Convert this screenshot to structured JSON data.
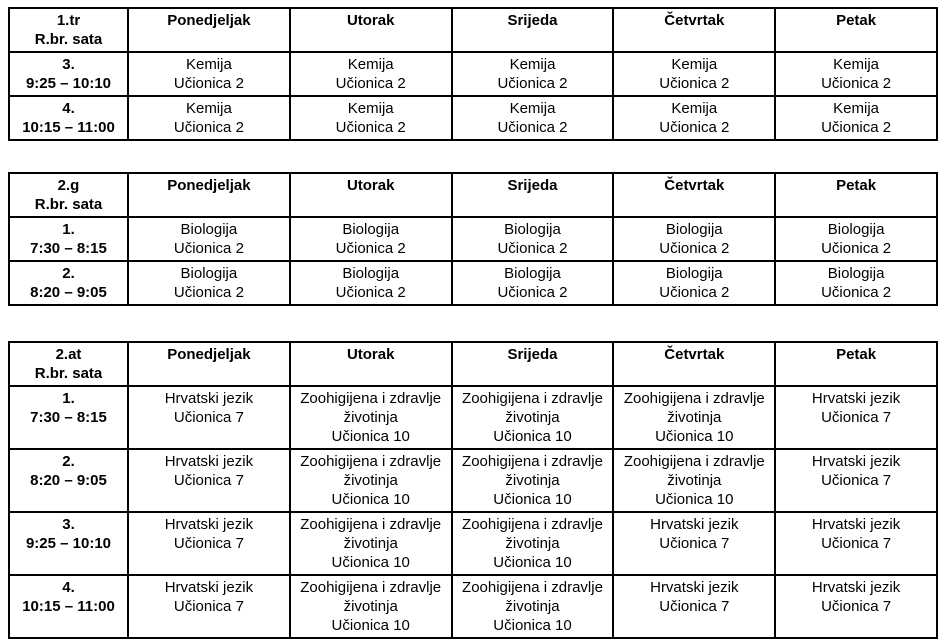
{
  "page": {
    "background_color": "#ffffff",
    "text_color": "#000000",
    "border_color": "#000000"
  },
  "tables": [
    {
      "name": "timetable-1tr",
      "header": {
        "class_label": "1.tr",
        "row_label": "R.br. sata",
        "days": [
          "Ponedjeljak",
          "Utorak",
          "Srijeda",
          "Četvrtak",
          "Petak"
        ]
      },
      "rows": [
        {
          "period": "3.",
          "time": "9:25 – 10:10",
          "cells": [
            {
              "subject": "Kemija",
              "room": "Učionica 2"
            },
            {
              "subject": "Kemija",
              "room": "Učionica 2"
            },
            {
              "subject": "Kemija",
              "room": "Učionica 2"
            },
            {
              "subject": "Kemija",
              "room": "Učionica 2"
            },
            {
              "subject": "Kemija",
              "room": "Učionica 2"
            }
          ]
        },
        {
          "period": "4.",
          "time": "10:15 – 11:00",
          "cells": [
            {
              "subject": "Kemija",
              "room": "Učionica 2"
            },
            {
              "subject": "Kemija",
              "room": "Učionica 2"
            },
            {
              "subject": "Kemija",
              "room": "Učionica 2"
            },
            {
              "subject": "Kemija",
              "room": "Učionica 2"
            },
            {
              "subject": "Kemija",
              "room": "Učionica 2"
            }
          ]
        }
      ]
    },
    {
      "name": "timetable-2g",
      "header": {
        "class_label": "2.g",
        "row_label": "R.br. sata",
        "days": [
          "Ponedjeljak",
          "Utorak",
          "Srijeda",
          "Četvrtak",
          "Petak"
        ]
      },
      "rows": [
        {
          "period": "1.",
          "time": "7:30 – 8:15",
          "cells": [
            {
              "subject": "Biologija",
              "room": "Učionica 2"
            },
            {
              "subject": "Biologija",
              "room": "Učionica 2"
            },
            {
              "subject": "Biologija",
              "room": "Učionica 2"
            },
            {
              "subject": "Biologija",
              "room": "Učionica 2"
            },
            {
              "subject": "Biologija",
              "room": "Učionica 2"
            }
          ]
        },
        {
          "period": "2.",
          "time": "8:20 – 9:05",
          "cells": [
            {
              "subject": "Biologija",
              "room": "Učionica 2"
            },
            {
              "subject": "Biologija",
              "room": "Učionica 2"
            },
            {
              "subject": "Biologija",
              "room": "Učionica 2"
            },
            {
              "subject": "Biologija",
              "room": "Učionica 2"
            },
            {
              "subject": "Biologija",
              "room": "Učionica 2"
            }
          ]
        }
      ]
    },
    {
      "name": "timetable-2at",
      "header": {
        "class_label": "2.at",
        "row_label": "R.br. sata",
        "days": [
          "Ponedjeljak",
          "Utorak",
          "Srijeda",
          "Četvrtak",
          "Petak"
        ]
      },
      "rows": [
        {
          "period": "1.",
          "time": "7:30 – 8:15",
          "cells": [
            {
              "subject": "Hrvatski jezik",
              "room": "Učionica 7"
            },
            {
              "subject": "Zoohigijena i zdravlje životinja",
              "room": "Učionica 10"
            },
            {
              "subject": "Zoohigijena i zdravlje životinja",
              "room": "Učionica 10"
            },
            {
              "subject": "Zoohigijena i zdravlje životinja",
              "room": "Učionica 10"
            },
            {
              "subject": "Hrvatski jezik",
              "room": "Učionica 7"
            }
          ]
        },
        {
          "period": "2.",
          "time": "8:20 – 9:05",
          "cells": [
            {
              "subject": "Hrvatski jezik",
              "room": "Učionica 7"
            },
            {
              "subject": "Zoohigijena i zdravlje životinja",
              "room": "Učionica 10"
            },
            {
              "subject": "Zoohigijena i zdravlje životinja",
              "room": "Učionica 10"
            },
            {
              "subject": "Zoohigijena i zdravlje životinja",
              "room": "Učionica 10"
            },
            {
              "subject": "Hrvatski jezik",
              "room": "Učionica 7"
            }
          ]
        },
        {
          "period": "3.",
          "time": "9:25 – 10:10",
          "cells": [
            {
              "subject": "Hrvatski jezik",
              "room": "Učionica 7"
            },
            {
              "subject": "Zoohigijena i zdravlje životinja",
              "room": "Učionica 10"
            },
            {
              "subject": "Zoohigijena i zdravlje životinja",
              "room": "Učionica 10"
            },
            {
              "subject": "Hrvatski jezik",
              "room": "Učionica 7"
            },
            {
              "subject": "Hrvatski jezik",
              "room": "Učionica 7"
            }
          ]
        },
        {
          "period": "4.",
          "time": "10:15 – 11:00",
          "cells": [
            {
              "subject": "Hrvatski jezik",
              "room": "Učionica 7"
            },
            {
              "subject": "Zoohigijena i zdravlje životinja",
              "room": "Učionica 10"
            },
            {
              "subject": "Zoohigijena i zdravlje životinja",
              "room": "Učionica 10"
            },
            {
              "subject": "Hrvatski jezik",
              "room": "Učionica 7"
            },
            {
              "subject": "Hrvatski jezik",
              "room": "Učionica 7"
            }
          ]
        }
      ]
    }
  ]
}
